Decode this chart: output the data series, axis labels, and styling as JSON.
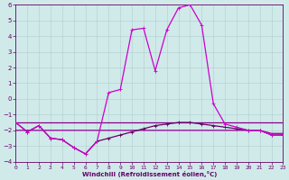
{
  "xlabel": "Windchill (Refroidissement éolien,°C)",
  "xlim": [
    0,
    23
  ],
  "ylim": [
    -4,
    6
  ],
  "xticks": [
    0,
    1,
    2,
    3,
    4,
    5,
    6,
    7,
    8,
    9,
    10,
    11,
    12,
    13,
    14,
    15,
    16,
    17,
    18,
    19,
    20,
    21,
    22,
    23
  ],
  "yticks": [
    -4,
    -3,
    -2,
    -1,
    0,
    1,
    2,
    3,
    4,
    5,
    6
  ],
  "background_color": "#d0eaea",
  "grid_color": "#b0cccc",
  "curves": {
    "main": [
      -1.5,
      -2.1,
      -1.7,
      -2.5,
      -2.6,
      -3.1,
      -3.5,
      -2.7,
      0.4,
      0.6,
      4.4,
      4.5,
      1.8,
      4.4,
      5.8,
      6.0,
      4.7,
      -0.3,
      -1.6,
      -1.8,
      -2.0,
      -2.0,
      -2.3,
      -2.3
    ],
    "flat1": [
      -1.5,
      -1.5,
      -1.5,
      -1.5,
      -1.5,
      -1.5,
      -1.5,
      -1.5,
      -1.5,
      -1.5,
      -1.5,
      -1.5,
      -1.5,
      -1.5,
      -1.5,
      -1.5,
      -1.5,
      -1.5,
      -1.5,
      -1.5,
      -1.5,
      -1.5,
      -1.5,
      -1.5
    ],
    "lower": [
      -1.5,
      -2.1,
      -1.7,
      -2.5,
      -2.6,
      -3.1,
      -3.5,
      -2.7,
      -2.5,
      -2.3,
      -2.1,
      -1.9,
      -1.7,
      -1.6,
      -1.5,
      -1.5,
      -1.6,
      -1.7,
      -1.8,
      -1.9,
      -2.0,
      -2.0,
      -2.3,
      -2.3
    ],
    "flat2": [
      -2.0,
      -2.0,
      -2.0,
      -2.0,
      -2.0,
      -2.0,
      -2.0,
      -2.0,
      -2.0,
      -2.0,
      -2.0,
      -2.0,
      -2.0,
      -2.0,
      -2.0,
      -2.0,
      -2.0,
      -2.0,
      -2.0,
      -2.0,
      -2.0,
      -2.0,
      -2.2,
      -2.2
    ]
  },
  "colors": {
    "main": "#cc00cc",
    "flat1": "#880088",
    "lower": "#660066",
    "flat2": "#990099"
  }
}
